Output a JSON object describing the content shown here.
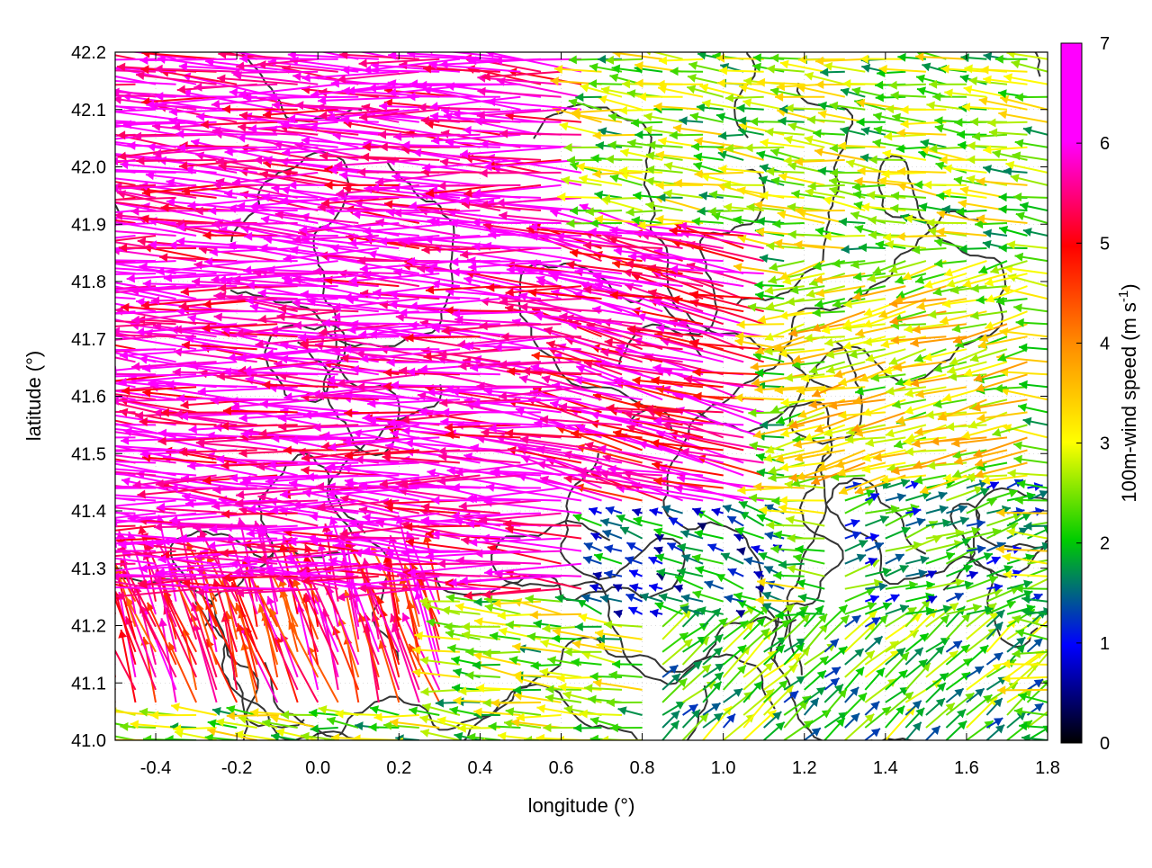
{
  "chart_data": {
    "type": "vector-field",
    "xlabel": "longitude (°)",
    "ylabel": "latitude (°)",
    "xlim": [
      -0.5,
      1.8
    ],
    "ylim": [
      41.0,
      42.2
    ],
    "x_ticks": [
      -0.4,
      -0.2,
      0.0,
      0.2,
      0.4,
      0.6,
      0.8,
      1.0,
      1.2,
      1.4,
      1.6,
      1.8
    ],
    "x_tick_labels": [
      "-0.4",
      "-0.2",
      "0.0",
      "0.2",
      "0.4",
      "0.6",
      "0.8",
      "1.0",
      "1.2",
      "1.4",
      "1.6",
      "1.8"
    ],
    "y_ticks": [
      41.0,
      41.1,
      41.2,
      41.3,
      41.4,
      41.5,
      41.6,
      41.7,
      41.8,
      41.9,
      42.0,
      42.1,
      42.2
    ],
    "y_tick_labels": [
      "41.0",
      "41.1",
      "41.2",
      "41.3",
      "41.4",
      "41.5",
      "41.6",
      "41.7",
      "41.8",
      "41.9",
      "42.0",
      "42.1",
      "42.2"
    ],
    "colorbar": {
      "label": "100m-wind speed (m s",
      "label_superscript": "-1",
      "label_suffix": ")",
      "range": [
        0,
        7
      ],
      "ticks": [
        0,
        1,
        2,
        3,
        4,
        5,
        6,
        7
      ],
      "tick_labels": [
        "0",
        "1",
        "2",
        "3",
        "4",
        "5",
        "6",
        "7"
      ],
      "colors": [
        "#000000",
        "#0000ff",
        "#00cc00",
        "#ffff00",
        "#ff8c00",
        "#ff0000",
        "#ff00ff"
      ]
    },
    "grid": true,
    "contour_color": "#333333",
    "wind_vectors_description_note": "",
    "wind_regions": [
      {
        "lon_range": [
          -0.5,
          0.7
        ],
        "lat_range": [
          41.25,
          42.2
        ],
        "speed": 7,
        "u": -0.98,
        "v": 0.05
      },
      {
        "lon_range": [
          0.7,
          1.15
        ],
        "lat_range": [
          41.4,
          41.9
        ],
        "speed": 6.5,
        "u": -0.95,
        "v": 0.2
      },
      {
        "lon_range": [
          -0.5,
          0.3
        ],
        "lat_range": [
          41.05,
          41.25
        ],
        "speed": 6,
        "u": -0.3,
        "v": 0.9
      },
      {
        "lon_range": [
          0.8,
          1.8
        ],
        "lat_range": [
          41.9,
          42.2
        ],
        "speed": 3,
        "u": -0.9,
        "v": 0.1
      },
      {
        "lon_range": [
          1.2,
          1.8
        ],
        "lat_range": [
          41.45,
          41.85
        ],
        "speed": 3.5,
        "u": -0.9,
        "v": -0.2
      },
      {
        "lon_range": [
          1.3,
          1.8
        ],
        "lat_range": [
          41.2,
          41.45
        ],
        "speed": 2,
        "u": 0.9,
        "v": 0.3
      },
      {
        "lon_range": [
          0.85,
          1.8
        ],
        "lat_range": [
          41.0,
          41.2
        ],
        "speed": 2.5,
        "u": 0.7,
        "v": 0.6
      },
      {
        "lon_range": [
          0.7,
          1.2
        ],
        "lat_range": [
          41.2,
          41.4
        ],
        "speed": 1.5,
        "u": -0.8,
        "v": 0.3
      }
    ]
  }
}
